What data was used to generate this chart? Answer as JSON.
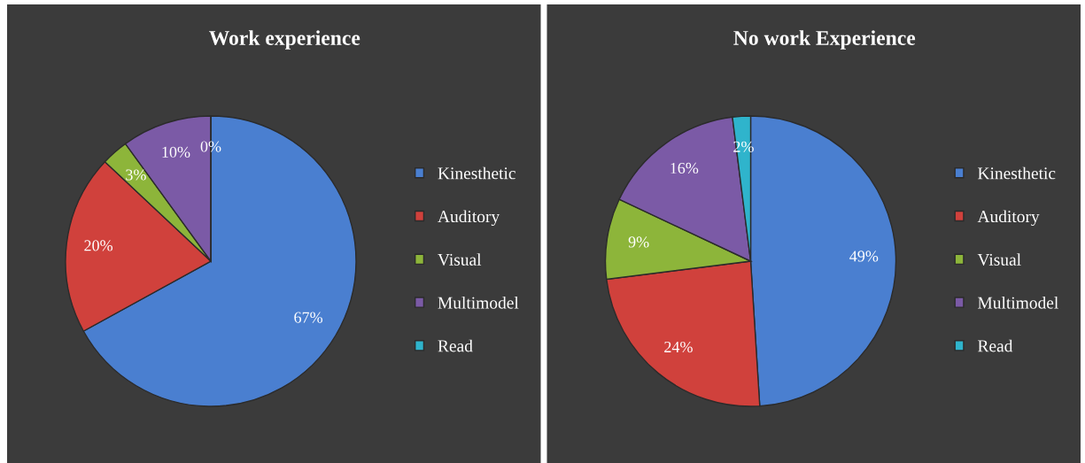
{
  "chart_data": [
    {
      "type": "pie",
      "title": "Work experience",
      "categories": [
        "Kinesthetic",
        "Auditory",
        "Visual",
        "Multimodel",
        "Read"
      ],
      "values": [
        67,
        20,
        3,
        10,
        0
      ],
      "value_labels": [
        "67%",
        "20%",
        "3%",
        "10%",
        "0%"
      ],
      "colors": [
        "#4a7fd0",
        "#d0413c",
        "#8db53a",
        "#7b5aa6",
        "#2fb4cc"
      ],
      "legend": "right"
    },
    {
      "type": "pie",
      "title": "No work Experience",
      "categories": [
        "Kinesthetic",
        "Auditory",
        "Visual",
        "Multimodel",
        "Read"
      ],
      "values": [
        49,
        24,
        9,
        16,
        2
      ],
      "value_labels": [
        "49%",
        "24%",
        "9%",
        "16%",
        "2%"
      ],
      "colors": [
        "#4a7fd0",
        "#d0413c",
        "#8db53a",
        "#7b5aa6",
        "#2fb4cc"
      ],
      "legend": "right"
    }
  ]
}
